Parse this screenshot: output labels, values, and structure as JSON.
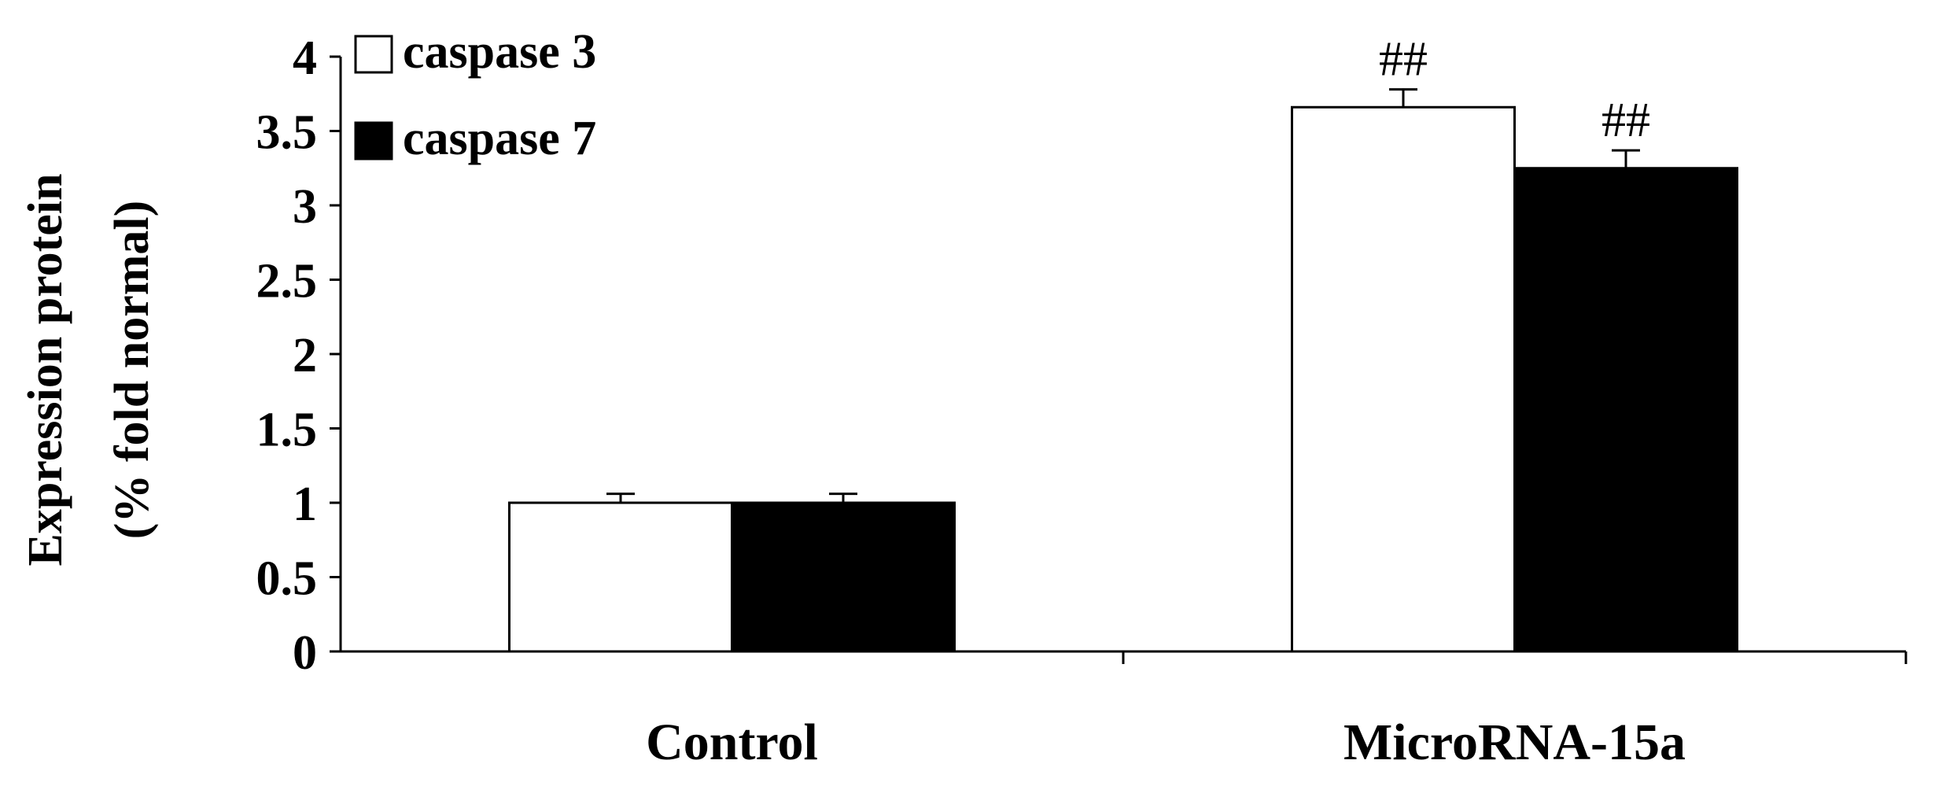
{
  "chart_data": {
    "type": "bar",
    "categories": [
      "Control",
      "MicroRNA-15a"
    ],
    "series": [
      {
        "name": "caspase 3",
        "values": [
          1.0,
          3.66
        ],
        "errors": [
          0.06,
          0.12
        ],
        "color": "#ffffff",
        "annotations": [
          "",
          "##"
        ]
      },
      {
        "name": "caspase 7",
        "values": [
          1.0,
          3.25
        ],
        "errors": [
          0.06,
          0.12
        ],
        "color": "#000000",
        "annotations": [
          "",
          "##"
        ]
      }
    ],
    "ylabel_lines": [
      "Expression protein",
      "(% fold normal)"
    ],
    "xlabel": "",
    "ylim": [
      0,
      4
    ],
    "yticks": [
      "0",
      "0.5",
      "1",
      "1.5",
      "2",
      "2.5",
      "3",
      "3.5",
      "4"
    ],
    "legend_position": "top-left",
    "grid": false
  }
}
